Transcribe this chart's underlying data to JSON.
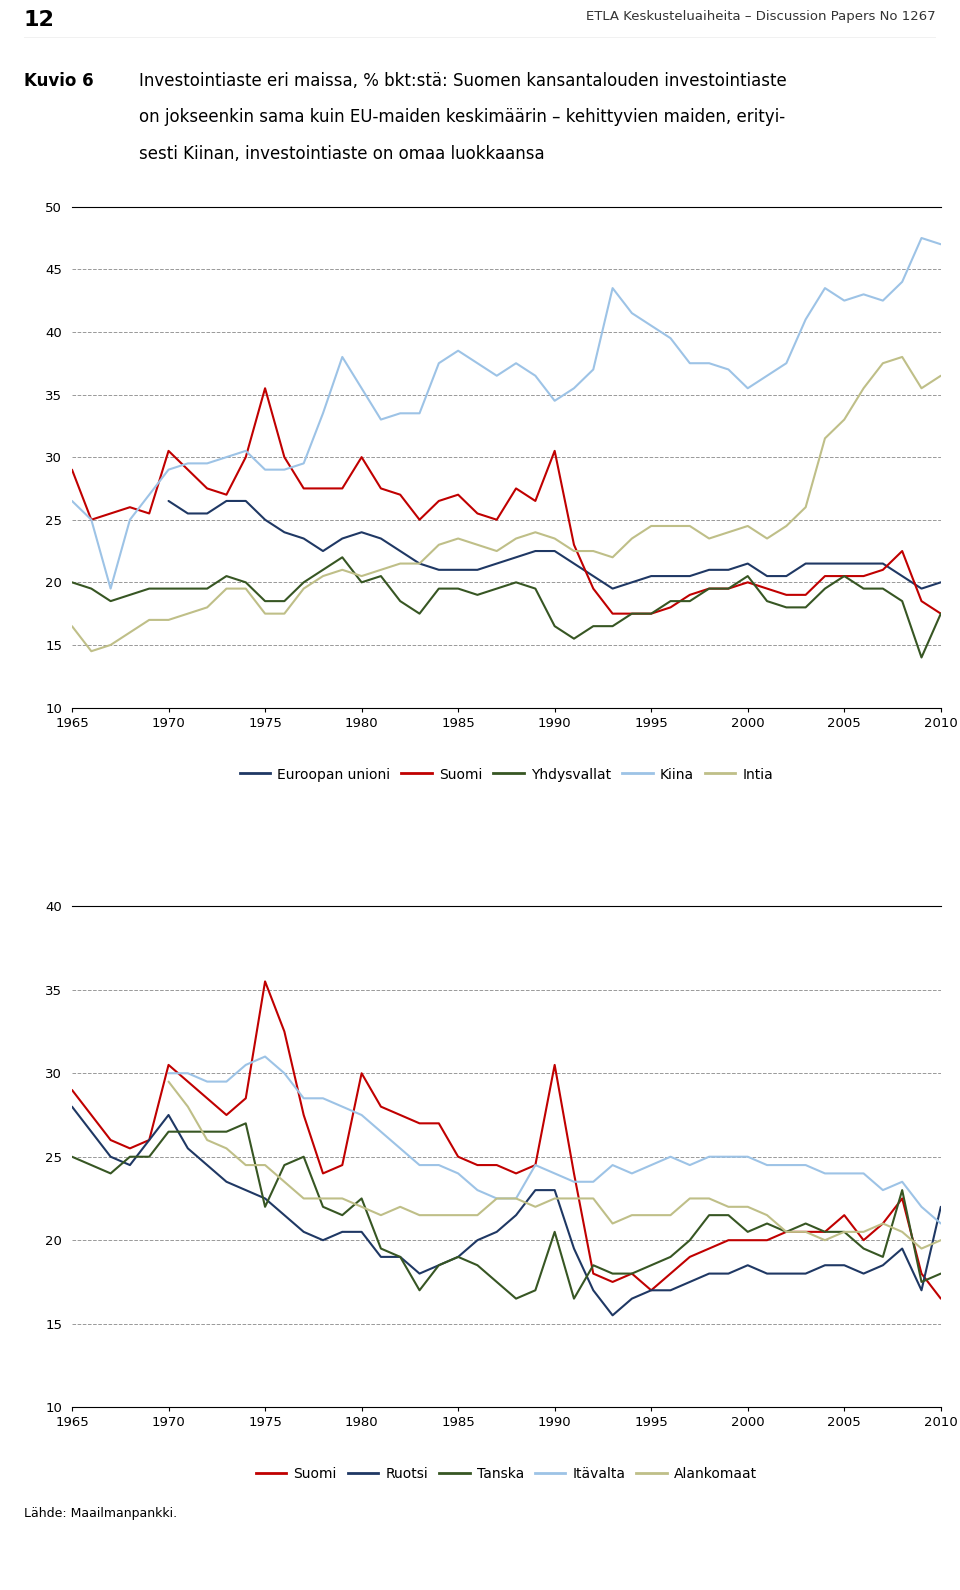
{
  "page_number": "12",
  "header": "ETLA Keskusteluaiheita – Discussion Papers No 1267",
  "kuvio_label": "Kuvio 6",
  "title_line1": "Investointiaste eri maissa, % bkt:stä: Suomen kansantalouden investointiaste",
  "title_line2": "on jokseenkin sama kuin EU-maiden keskimäärin – kehittyvien maiden, erityi-",
  "title_line3": "sesti Kiinan, investointiaste on omaa luokkaansa",
  "source": "Lähde: Maailmanpankki.",
  "years": [
    1965,
    1966,
    1967,
    1968,
    1969,
    1970,
    1971,
    1972,
    1973,
    1974,
    1975,
    1976,
    1977,
    1978,
    1979,
    1980,
    1981,
    1982,
    1983,
    1984,
    1985,
    1986,
    1987,
    1988,
    1989,
    1990,
    1991,
    1992,
    1993,
    1994,
    1995,
    1996,
    1997,
    1998,
    1999,
    2000,
    2001,
    2002,
    2003,
    2004,
    2005,
    2006,
    2007,
    2008,
    2009,
    2010
  ],
  "chart1": {
    "ylim": [
      10,
      50
    ],
    "yticks": [
      10,
      15,
      20,
      25,
      30,
      35,
      40,
      45,
      50
    ],
    "series": {
      "Euroopan unioni": {
        "color": "#1F3864",
        "data": [
          null,
          null,
          null,
          null,
          null,
          26.5,
          25.5,
          25.5,
          26.5,
          26.5,
          25.0,
          24.0,
          23.5,
          22.5,
          23.5,
          24.0,
          23.5,
          22.5,
          21.5,
          21.0,
          21.0,
          21.0,
          21.5,
          22.0,
          22.5,
          22.5,
          21.5,
          20.5,
          19.5,
          20.0,
          20.5,
          20.5,
          20.5,
          21.0,
          21.0,
          21.5,
          20.5,
          20.5,
          21.5,
          21.5,
          21.5,
          21.5,
          21.5,
          20.5,
          19.5,
          20.0
        ]
      },
      "Suomi": {
        "color": "#C00000",
        "data": [
          29.0,
          25.0,
          25.5,
          26.0,
          25.5,
          30.5,
          29.0,
          27.5,
          27.0,
          30.0,
          35.5,
          30.0,
          27.5,
          27.5,
          27.5,
          30.0,
          27.5,
          27.0,
          25.0,
          26.5,
          27.0,
          25.5,
          25.0,
          27.5,
          26.5,
          30.5,
          23.0,
          19.5,
          17.5,
          17.5,
          17.5,
          18.0,
          19.0,
          19.5,
          19.5,
          20.0,
          19.5,
          19.0,
          19.0,
          20.5,
          20.5,
          20.5,
          21.0,
          22.5,
          18.5,
          17.5
        ]
      },
      "Yhdysvallat": {
        "color": "#375623",
        "data": [
          20.0,
          19.5,
          18.5,
          19.0,
          19.5,
          19.5,
          19.5,
          19.5,
          20.5,
          20.0,
          18.5,
          18.5,
          20.0,
          21.0,
          22.0,
          20.0,
          20.5,
          18.5,
          17.5,
          19.5,
          19.5,
          19.0,
          19.5,
          20.0,
          19.5,
          16.5,
          15.5,
          16.5,
          16.5,
          17.5,
          17.5,
          18.5,
          18.5,
          19.5,
          19.5,
          20.5,
          18.5,
          18.0,
          18.0,
          19.5,
          20.5,
          19.5,
          19.5,
          18.5,
          14.0,
          17.5
        ]
      },
      "Kiina": {
        "color": "#9DC3E6",
        "data": [
          26.5,
          25.0,
          19.5,
          25.0,
          27.0,
          29.0,
          29.5,
          29.5,
          30.0,
          30.5,
          29.0,
          29.0,
          29.5,
          33.5,
          38.0,
          35.5,
          33.0,
          33.5,
          33.5,
          37.5,
          38.5,
          37.5,
          36.5,
          37.5,
          36.5,
          34.5,
          35.5,
          37.0,
          43.5,
          41.5,
          40.5,
          39.5,
          37.5,
          37.5,
          37.0,
          35.5,
          36.5,
          37.5,
          41.0,
          43.5,
          42.5,
          43.0,
          42.5,
          44.0,
          47.5,
          47.0
        ]
      },
      "Intia": {
        "color": "#BFBF88",
        "data": [
          16.5,
          14.5,
          15.0,
          16.0,
          17.0,
          17.0,
          17.5,
          18.0,
          19.5,
          19.5,
          17.5,
          17.5,
          19.5,
          20.5,
          21.0,
          20.5,
          21.0,
          21.5,
          21.5,
          23.0,
          23.5,
          23.0,
          22.5,
          23.5,
          24.0,
          23.5,
          22.5,
          22.5,
          22.0,
          23.5,
          24.5,
          24.5,
          24.5,
          23.5,
          24.0,
          24.5,
          23.5,
          24.5,
          26.0,
          31.5,
          33.0,
          35.5,
          37.5,
          38.0,
          35.5,
          36.5
        ]
      }
    }
  },
  "chart2": {
    "ylim": [
      10,
      40
    ],
    "yticks": [
      10,
      15,
      20,
      25,
      30,
      35,
      40
    ],
    "series": {
      "Suomi": {
        "color": "#C00000",
        "data": [
          29.0,
          27.5,
          26.0,
          25.5,
          26.0,
          30.5,
          29.5,
          28.5,
          27.5,
          28.5,
          35.5,
          32.5,
          27.5,
          24.0,
          24.5,
          30.0,
          28.0,
          27.5,
          27.0,
          27.0,
          25.0,
          24.5,
          24.5,
          24.0,
          24.5,
          30.5,
          24.0,
          18.0,
          17.5,
          18.0,
          17.0,
          18.0,
          19.0,
          19.5,
          20.0,
          20.0,
          20.0,
          20.5,
          20.5,
          20.5,
          21.5,
          20.0,
          21.0,
          22.5,
          18.0,
          16.5
        ]
      },
      "Ruotsi": {
        "color": "#1F3864",
        "data": [
          28.0,
          26.5,
          25.0,
          24.5,
          26.0,
          27.5,
          25.5,
          24.5,
          23.5,
          23.0,
          22.5,
          21.5,
          20.5,
          20.0,
          20.5,
          20.5,
          19.0,
          19.0,
          18.0,
          18.5,
          19.0,
          20.0,
          20.5,
          21.5,
          23.0,
          23.0,
          19.5,
          17.0,
          15.5,
          16.5,
          17.0,
          17.0,
          17.5,
          18.0,
          18.0,
          18.5,
          18.0,
          18.0,
          18.0,
          18.5,
          18.5,
          18.0,
          18.5,
          19.5,
          17.0,
          22.0
        ]
      },
      "Tanska": {
        "color": "#375623",
        "data": [
          25.0,
          24.5,
          24.0,
          25.0,
          25.0,
          26.5,
          26.5,
          26.5,
          26.5,
          27.0,
          22.0,
          24.5,
          25.0,
          22.0,
          21.5,
          22.5,
          19.5,
          19.0,
          17.0,
          18.5,
          19.0,
          18.5,
          17.5,
          16.5,
          17.0,
          20.5,
          16.5,
          18.5,
          18.0,
          18.0,
          18.5,
          19.0,
          20.0,
          21.5,
          21.5,
          20.5,
          21.0,
          20.5,
          21.0,
          20.5,
          20.5,
          19.5,
          19.0,
          23.0,
          17.5,
          18.0
        ]
      },
      "Itävalta": {
        "color": "#9DC3E6",
        "data": [
          null,
          null,
          null,
          null,
          null,
          30.0,
          30.0,
          29.5,
          29.5,
          30.5,
          31.0,
          30.0,
          28.5,
          28.5,
          28.0,
          27.5,
          26.5,
          25.5,
          24.5,
          24.5,
          24.0,
          23.0,
          22.5,
          22.5,
          24.5,
          24.0,
          23.5,
          23.5,
          24.5,
          24.0,
          24.5,
          25.0,
          24.5,
          25.0,
          25.0,
          25.0,
          24.5,
          24.5,
          24.5,
          24.0,
          24.0,
          24.0,
          23.0,
          23.5,
          22.0,
          21.0
        ]
      },
      "Alankomaat": {
        "color": "#BFBF88",
        "data": [
          null,
          null,
          null,
          null,
          null,
          29.5,
          28.0,
          26.0,
          25.5,
          24.5,
          24.5,
          23.5,
          22.5,
          22.5,
          22.5,
          22.0,
          21.5,
          22.0,
          21.5,
          21.5,
          21.5,
          21.5,
          22.5,
          22.5,
          22.0,
          22.5,
          22.5,
          22.5,
          21.0,
          21.5,
          21.5,
          21.5,
          22.5,
          22.5,
          22.0,
          22.0,
          21.5,
          20.5,
          20.5,
          20.0,
          20.5,
          20.5,
          21.0,
          20.5,
          19.5,
          20.0
        ]
      }
    }
  }
}
